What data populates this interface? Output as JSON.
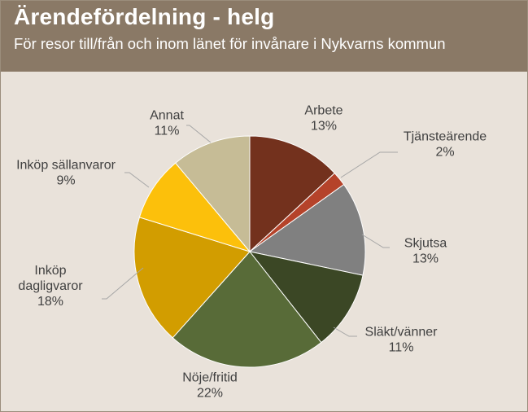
{
  "header": {
    "title": "Ärendefördelning - helg",
    "subtitle": "För resor till/från och inom länet för invånare i Nykvarns kommun"
  },
  "chart_data": {
    "type": "pie",
    "title": "Ärendefördelning - helg",
    "subtitle": "För resor till/från och inom länet för invånare i Nykvarns kommun",
    "slices": [
      {
        "label": "Arbete",
        "value": 13,
        "value_label": "13%",
        "color": "#73311d"
      },
      {
        "label": "Tjänsteärende",
        "value": 2,
        "value_label": "2%",
        "color": "#b5432a"
      },
      {
        "label": "Skjutsa",
        "value": 13,
        "value_label": "13%",
        "color": "#808080"
      },
      {
        "label": "Släkt/vänner",
        "value": 11,
        "value_label": "11%",
        "color": "#3b4725"
      },
      {
        "label": "Nöje/fritid",
        "value": 22,
        "value_label": "22%",
        "color": "#586b38"
      },
      {
        "label": "Inköp dagligvaror",
        "value": 18,
        "value_label": "18%",
        "color": "#d29d00"
      },
      {
        "label": "Inköp sällanvaror",
        "value": 9,
        "value_label": "9%",
        "color": "#fcc00b"
      },
      {
        "label": "Annat",
        "value": 11,
        "value_label": "11%",
        "color": "#c6bc96"
      }
    ],
    "legend": "none",
    "data_labels": "outside with leader lines"
  }
}
